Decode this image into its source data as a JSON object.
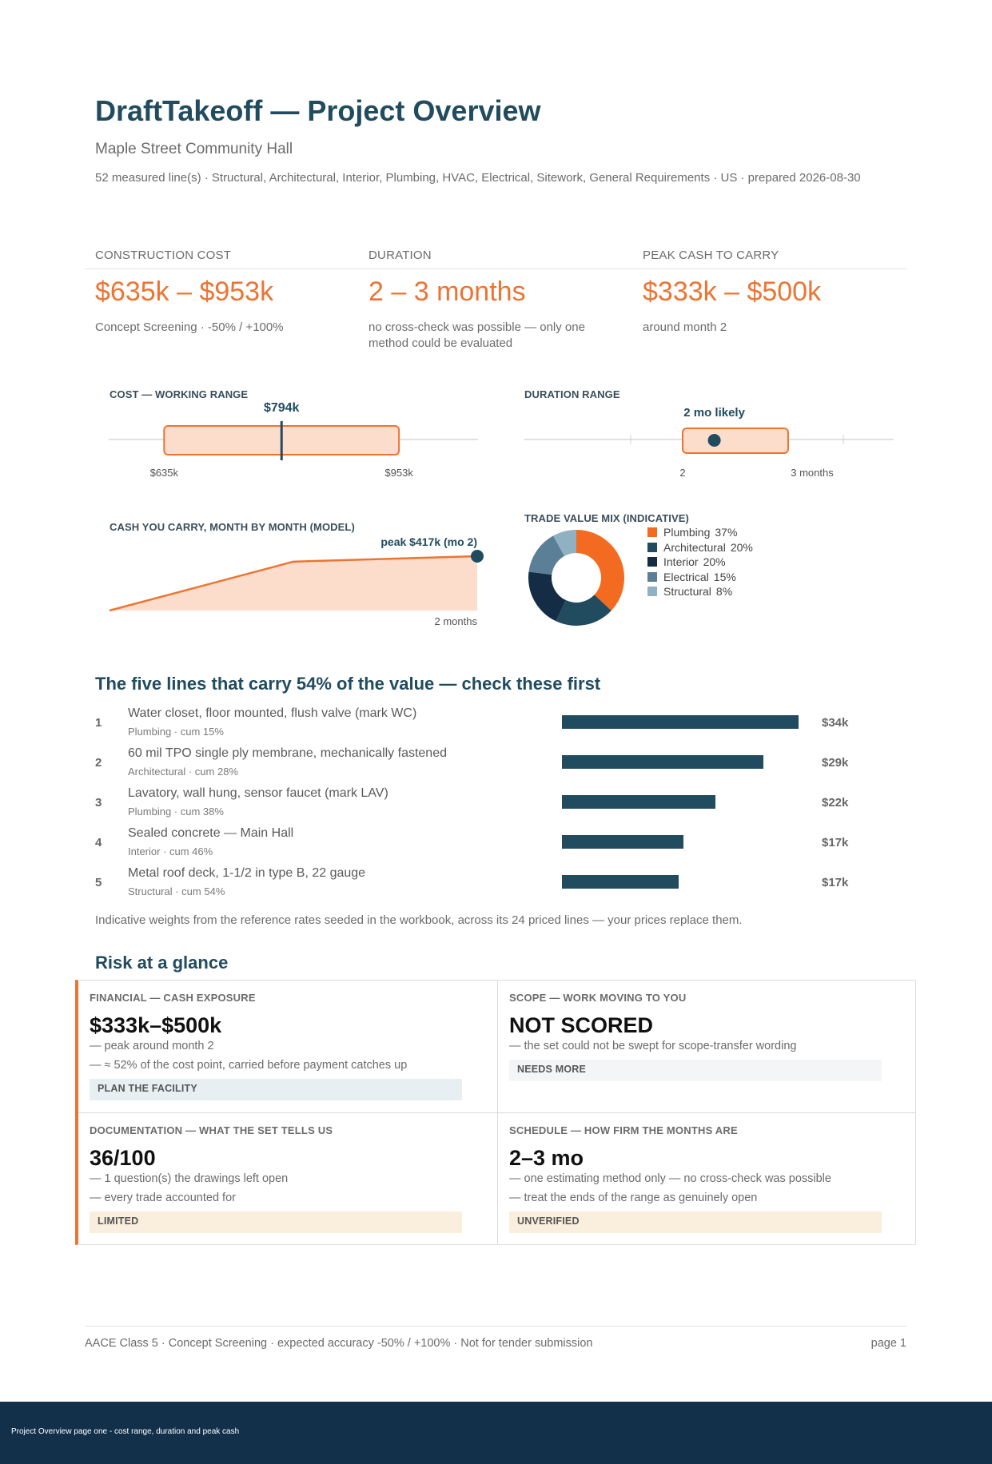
{
  "header": {
    "title": "DraftTakeoff — Project Overview",
    "project": "Maple Street Community Hall",
    "meta": "52 measured line(s)  ·  Structural, Architectural, Interior, Plumbing, HVAC, Electrical, Sitework, General Requirements  ·  US  ·  prepared 2026-08-30"
  },
  "kpis": [
    {
      "label": "CONSTRUCTION COST",
      "value": "$635k – $953k",
      "note": "Concept Screening · -50% / +100%"
    },
    {
      "label": "DURATION",
      "value": "2 – 3 months",
      "note": "no cross-check was possible — only one method could be evaluated"
    },
    {
      "label": "PEAK CASH TO CARRY",
      "value": "$333k – $500k",
      "note": "around month 2"
    }
  ],
  "cost_range": {
    "title": "COST — WORKING RANGE",
    "low": 635,
    "high": 953,
    "point": 794,
    "point_label": "$794k",
    "low_label": "$635k",
    "high_label": "$953k"
  },
  "duration_range": {
    "title": "DURATION RANGE",
    "low": 2,
    "high": 3,
    "likely": 2.3,
    "likely_label": "2 mo likely",
    "low_label": "2",
    "high_label": "3 months"
  },
  "cash_curve": {
    "title": "CASH YOU CARRY, MONTH BY MONTH (MODEL)",
    "peak_label": "peak $417k (mo 2)",
    "x_label": "2 months",
    "points": [
      [
        0,
        0
      ],
      [
        1,
        375
      ],
      [
        2,
        417
      ]
    ]
  },
  "trade_mix": {
    "title": "TRADE VALUE MIX (INDICATIVE)",
    "slices": [
      {
        "name": "Plumbing",
        "pct_label": "37%",
        "value": 37,
        "color": "#f26b21"
      },
      {
        "name": "Architectural",
        "pct_label": "20%",
        "value": 20,
        "color": "#214b5e"
      },
      {
        "name": "Interior",
        "pct_label": "20%",
        "value": 20,
        "color": "#142d45"
      },
      {
        "name": "Electrical",
        "pct_label": "15%",
        "value": 15,
        "color": "#5a7f97"
      },
      {
        "name": "Structural",
        "pct_label": "8%",
        "value": 8,
        "color": "#8fb1c2"
      }
    ]
  },
  "top_lines": {
    "heading": "The five lines that carry 54% of the value — check these first",
    "rows": [
      {
        "rank": "1",
        "name": "Water closet, floor mounted, flush valve (mark WC)",
        "sub": "Plumbing · cum 15%",
        "value": 34,
        "value_label": "$34k"
      },
      {
        "rank": "2",
        "name": "60 mil TPO single ply membrane, mechanically fastened",
        "sub": "Architectural · cum 28%",
        "value": 29,
        "value_label": "$29k"
      },
      {
        "rank": "3",
        "name": "Lavatory, wall hung, sensor faucet (mark LAV)",
        "sub": "Plumbing · cum 38%",
        "value": 22,
        "value_label": "$22k"
      },
      {
        "rank": "4",
        "name": "Sealed concrete — Main Hall",
        "sub": "Interior · cum 46%",
        "value": 17.5,
        "value_label": "$17k"
      },
      {
        "rank": "5",
        "name": "Metal roof deck, 1-1/2 in type B, 22 gauge",
        "sub": "Structural · cum 54%",
        "value": 16.8,
        "value_label": "$17k"
      }
    ],
    "note": "Indicative weights from the reference rates seeded in the workbook, across its 24 priced lines — your prices replace them."
  },
  "risk": {
    "heading": "Risk at a glance",
    "cells": [
      {
        "label": "FINANCIAL — CASH EXPOSURE",
        "big": "$333k–$500k",
        "lines": [
          "— peak around month 2",
          "— ≈ 52% of the cost point, carried before payment catches up"
        ],
        "badge": "PLAN THE FACILITY",
        "badge_color": "#e8eff3"
      },
      {
        "label": "SCOPE — WORK MOVING TO YOU",
        "big": "NOT SCORED",
        "lines": [
          "— the set could not be swept for scope-transfer wording"
        ],
        "badge": "NEEDS MORE",
        "badge_color": "#f3f5f7"
      },
      {
        "label": "DOCUMENTATION — WHAT THE SET TELLS US",
        "big": "36/100",
        "lines": [
          "— 1 question(s) the drawings left open",
          "— every trade accounted for"
        ],
        "badge": "LIMITED",
        "badge_color": "#faeedd"
      },
      {
        "label": "SCHEDULE — HOW FIRM THE MONTHS ARE",
        "big": "2–3 mo",
        "lines": [
          "— one estimating method only — no cross-check was possible",
          "— treat the ends of the range as genuinely open"
        ],
        "badge": "UNVERIFIED",
        "badge_color": "#faeedd"
      }
    ]
  },
  "footer": {
    "left": "AACE Class 5 · Concept Screening · expected accuracy -50% / +100%  ·  Not for tender submission",
    "right": "page 1",
    "band": "Project Overview page one - cost range, duration and peak cash"
  },
  "colors": {
    "accent": "#ec7432",
    "navy": "#214b5e",
    "fill": "#fcdccb"
  }
}
